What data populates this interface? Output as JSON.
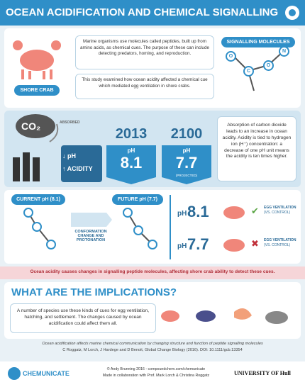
{
  "header": {
    "title": "OCEAN ACIDIFICATION AND CHEMICAL SIGNALLING"
  },
  "intro": {
    "crab_label": "SHORE CRAB",
    "paragraph1": "Marine organisms use molecules called peptides, built up from amino acids, as chemical cues. The purpose of these can include detecting predators, homing, and reproduction.",
    "paragraph2": "This study examined how ocean acidity affected a chemical cue which mediated egg ventilation in shore crabs.",
    "molecules_label": "SIGNALLING MOLECULES",
    "atoms": [
      "O",
      "C",
      "O",
      "N"
    ]
  },
  "ph": {
    "co2": "CO₂",
    "absorbed": "ABSORBED",
    "down_ph": "↓ pH",
    "up_acidity": "↑ ACIDITY",
    "years": [
      {
        "year": "2013",
        "ph_label": "pH",
        "value": "8.1"
      },
      {
        "year": "2100",
        "ph_label": "pH",
        "value": "7.7",
        "note": "(PROJECTED)"
      }
    ],
    "explanation": "Absorption of carbon dioxide leads to an increase in ocean acidity. Acidity is tied to hydrogen ion (H⁺) concentration: a decrease of one pH unit means the acidity is ten times higher."
  },
  "comparison": {
    "current": "CURRENT pH (8.1)",
    "future": "FUTURE pH (7.7)",
    "change": "CONFORMATION CHANGE AND PROTONATION",
    "rows": [
      {
        "ph_label": "pH",
        "value": "8.1",
        "mark": "✔",
        "result": "EGG VENTILATION",
        "note": "(VS. CONTROL)"
      },
      {
        "ph_label": "pH",
        "value": "7.7",
        "mark": "✖",
        "result": "EGG VENTILATION",
        "note": "(VS. CONTROL)"
      }
    ]
  },
  "banner": "Ocean acidity causes changes in signalling peptide molecules, affecting shore crab ability to detect these cues.",
  "implications": {
    "title": "WHAT ARE THE IMPLICATIONS?",
    "text": "A number of species use these kinds of cues for egg ventilation, hatching, and settlement. The changes caused by ocean acidification could affect them all."
  },
  "citation": {
    "title": "Ocean acidification affects marine chemical communication by changing structure and function of peptide signalling molecules",
    "authors": "C Roggatz, M Lorch, J Hardege and D Benoit, Global Change Biology (2016). DOI: 10.1111/gcb.13354"
  },
  "footer": {
    "brand": "CHEMUNICATE",
    "credit": "© Andy Brunning 2016 - compoundchem.com/chemunicate",
    "collab": "Made in collaboration with Prof. Mark Lorch & Christina Roggatz",
    "university": "UNIVERSITY OF Hull"
  }
}
